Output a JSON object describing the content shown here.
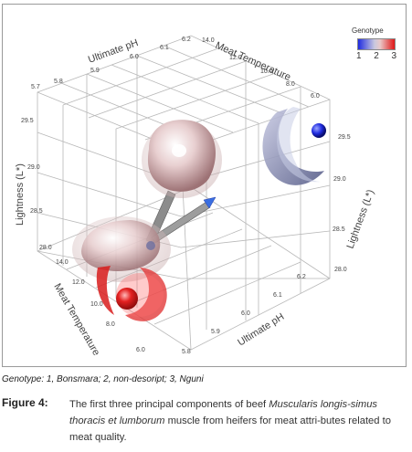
{
  "figure": {
    "legend": {
      "title": "Genotype",
      "labels": [
        "1",
        "2",
        "3"
      ]
    },
    "axes": {
      "ultimate_ph_top": {
        "label": "Ultimate pH",
        "ticks": [
          "5.7",
          "5.8",
          "5.9",
          "6.0",
          "6.1",
          "6.2"
        ]
      },
      "meat_temperature_top": {
        "label": "Meat Temperature",
        "ticks": [
          "14.0",
          "12.0",
          "10.0",
          "8.0",
          "6.0"
        ]
      },
      "lightness_left": {
        "label": "Lightness (L*)",
        "ticks": [
          "29.5",
          "29.0",
          "28.5",
          "28.0"
        ]
      },
      "lightness_right": {
        "label": "Lightness (L*)",
        "ticks": [
          "29.5",
          "29.0",
          "28.5",
          "28.0"
        ]
      },
      "meat_temperature_bottom": {
        "label": "Meat Temperature",
        "ticks": [
          "14.0",
          "12.0",
          "10.0",
          "8.0",
          "6.0"
        ]
      },
      "ultimate_ph_bottom": {
        "label": "Ultimate pH",
        "ticks": [
          "5.8",
          "5.9",
          "6.0",
          "6.1",
          "6.2"
        ]
      }
    },
    "colors": {
      "genotype_1": "#1f2be0",
      "genotype_2": "#e9d2d2",
      "genotype_3": "#e01616",
      "grid": "#b8b8b8"
    }
  },
  "caption": {
    "genotype_note": "Genotype: 1, Bonsmara; 2, non-desoript; 3, Nguni",
    "label": "Figure 4:",
    "text_prefix": "The first three principal components of beef ",
    "text_italic": "Muscularis longis-simus thoracis et lumborum",
    "text_suffix": " muscle from heifers for meat attri-butes related to meat quality."
  }
}
